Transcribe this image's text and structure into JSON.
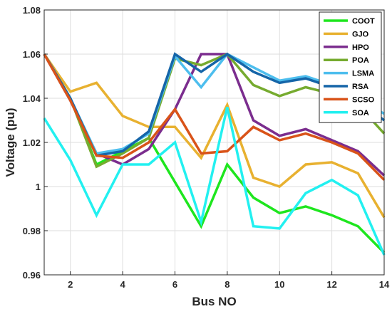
{
  "chart_data": {
    "type": "line",
    "xlabel": "Bus NO",
    "ylabel": "Voltage (pu)",
    "xlim": [
      1,
      14
    ],
    "ylim": [
      0.96,
      1.08
    ],
    "x_ticks": [
      2,
      4,
      6,
      8,
      10,
      12,
      14
    ],
    "x_tick_labels": [
      "2",
      "4",
      "6",
      "8",
      "10",
      "12",
      "14"
    ],
    "y_ticks": [
      0.96,
      0.98,
      1.0,
      1.02,
      1.04,
      1.06,
      1.08
    ],
    "y_tick_labels": [
      "0.96",
      "0.98",
      "1",
      "1.02",
      "1.04",
      "1.06",
      "1.08"
    ],
    "grid": true,
    "legend_position": "top-right",
    "x": [
      1,
      2,
      3,
      4,
      5,
      6,
      7,
      8,
      9,
      10,
      11,
      12,
      13,
      14
    ],
    "series": [
      {
        "name": "COOT",
        "color": "#1ee61e",
        "values": [
          1.06,
          1.04,
          1.01,
          1.016,
          1.022,
          1.002,
          0.982,
          1.01,
          0.995,
          0.988,
          0.991,
          0.987,
          0.982,
          0.97
        ]
      },
      {
        "name": "GJO",
        "color": "#e8b130",
        "values": [
          1.06,
          1.043,
          1.047,
          1.032,
          1.027,
          1.027,
          1.013,
          1.037,
          1.004,
          1.0,
          1.01,
          1.011,
          1.006,
          0.986
        ]
      },
      {
        "name": "HPO",
        "color": "#7b2d8e",
        "values": [
          1.06,
          1.039,
          1.015,
          1.01,
          1.017,
          1.035,
          1.06,
          1.06,
          1.03,
          1.023,
          1.026,
          1.021,
          1.016,
          1.005
        ]
      },
      {
        "name": "POA",
        "color": "#76ab2f",
        "values": [
          1.06,
          1.04,
          1.009,
          1.015,
          1.022,
          1.058,
          1.055,
          1.06,
          1.046,
          1.041,
          1.045,
          1.042,
          1.037,
          1.024
        ]
      },
      {
        "name": "LSMA",
        "color": "#4dbeee",
        "values": [
          1.06,
          1.04,
          1.015,
          1.017,
          1.024,
          1.059,
          1.045,
          1.06,
          1.054,
          1.048,
          1.05,
          1.046,
          1.04,
          1.033
        ]
      },
      {
        "name": "RSA",
        "color": "#1565a8",
        "values": [
          1.06,
          1.04,
          1.014,
          1.016,
          1.025,
          1.06,
          1.052,
          1.06,
          1.052,
          1.047,
          1.049,
          1.045,
          1.039,
          1.03
        ]
      },
      {
        "name": "SCSO",
        "color": "#d95319",
        "values": [
          1.06,
          1.039,
          1.014,
          1.013,
          1.02,
          1.035,
          1.015,
          1.016,
          1.027,
          1.021,
          1.024,
          1.02,
          1.015,
          1.003
        ]
      },
      {
        "name": "SOA",
        "color": "#22f0f0",
        "values": [
          1.031,
          1.012,
          0.987,
          1.01,
          1.01,
          1.02,
          0.984,
          1.036,
          0.982,
          0.981,
          0.997,
          1.003,
          0.996,
          0.969
        ]
      }
    ]
  }
}
